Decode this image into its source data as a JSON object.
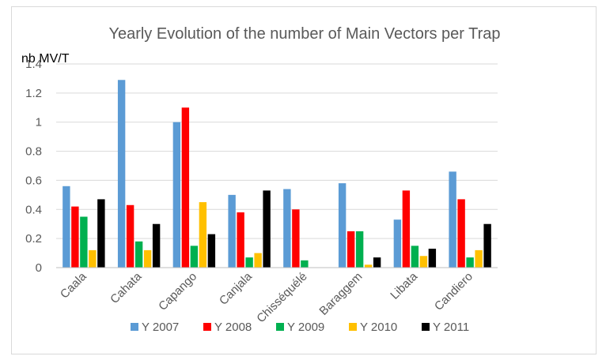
{
  "chart_data": {
    "type": "bar",
    "title": "Yearly Evolution of the number of Main Vectors per Trap",
    "ylabel": "nb MV/T",
    "xlabel": "",
    "ylim": [
      0,
      1.4
    ],
    "yticks": [
      "0",
      "0.2",
      "0.4",
      "0.6",
      "0.8",
      "1",
      "1.2",
      "1.4"
    ],
    "grid": true,
    "legend_position": "bottom",
    "categories": [
      "Caala",
      "Cahata",
      "Capango",
      "Canjala",
      "Chisséquélé",
      "Baraggem",
      "Libata",
      "Candiero"
    ],
    "series": [
      {
        "name": "Y 2007",
        "color": "#5b9bd5",
        "values": [
          0.56,
          1.29,
          1.0,
          0.5,
          0.54,
          0.58,
          0.33,
          0.66
        ]
      },
      {
        "name": "Y 2008",
        "color": "#ff0000",
        "values": [
          0.42,
          0.43,
          1.1,
          0.38,
          0.4,
          0.25,
          0.53,
          0.47
        ]
      },
      {
        "name": "Y 2009",
        "color": "#00b050",
        "values": [
          0.35,
          0.18,
          0.15,
          0.07,
          0.05,
          0.25,
          0.15,
          0.07
        ]
      },
      {
        "name": "Y 2010",
        "color": "#ffc000",
        "values": [
          0.12,
          0.12,
          0.45,
          0.1,
          0.0,
          0.02,
          0.08,
          0.12
        ]
      },
      {
        "name": "Y 2011",
        "color": "#000000",
        "values": [
          0.47,
          0.3,
          0.23,
          0.53,
          0.0,
          0.07,
          0.13,
          0.3
        ]
      }
    ]
  }
}
